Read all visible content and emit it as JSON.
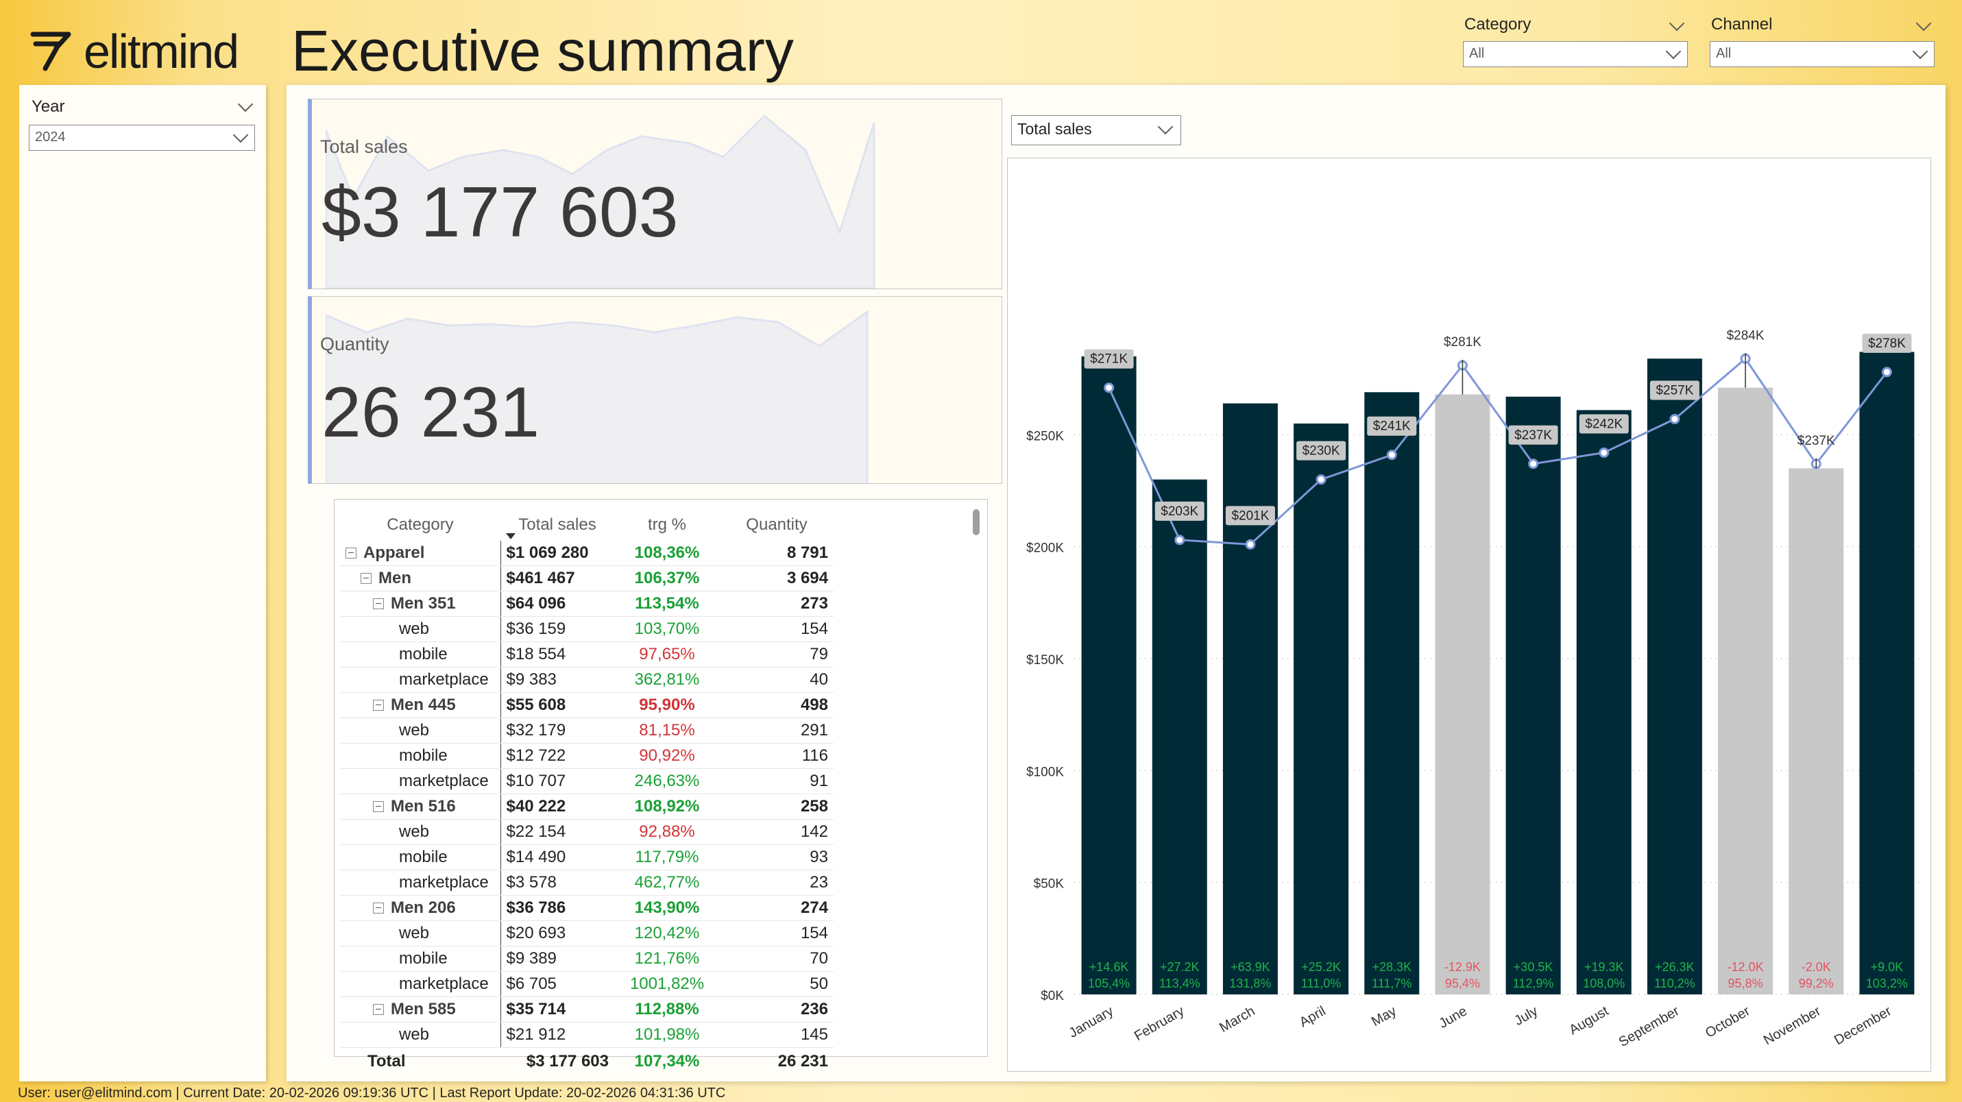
{
  "header": {
    "logo_text": "elitmind",
    "title": "Executive summary"
  },
  "slicers": {
    "year": {
      "label": "Year",
      "value": "2024"
    },
    "category": {
      "label": "Category",
      "value": "All"
    },
    "channel": {
      "label": "Channel",
      "value": "All"
    }
  },
  "kpis": {
    "total_sales": {
      "label": "Total sales",
      "value": "$3 177 603"
    },
    "quantity": {
      "label": "Quantity",
      "value": "26 231"
    }
  },
  "matrix": {
    "columns": [
      "Category",
      "Total sales",
      "trg %",
      "Quantity"
    ],
    "rows": [
      {
        "level": 0,
        "label": "Apparel",
        "sales": "$1 069 280",
        "trg": "108,36%",
        "trg_status": "pos",
        "qty": "8 791",
        "bold": true,
        "expand": true
      },
      {
        "level": 1,
        "label": "Men",
        "sales": "$461 467",
        "trg": "106,37%",
        "trg_status": "pos",
        "qty": "3 694",
        "bold": true,
        "expand": true
      },
      {
        "level": 2,
        "label": "Men 351",
        "sales": "$64 096",
        "trg": "113,54%",
        "trg_status": "pos",
        "qty": "273",
        "bold": true,
        "expand": true
      },
      {
        "level": 3,
        "label": "web",
        "sales": "$36 159",
        "trg": "103,70%",
        "trg_status": "pos",
        "qty": "154"
      },
      {
        "level": 3,
        "label": "mobile",
        "sales": "$18 554",
        "trg": "97,65%",
        "trg_status": "neg",
        "qty": "79"
      },
      {
        "level": 3,
        "label": "marketplace",
        "sales": "$9 383",
        "trg": "362,81%",
        "trg_status": "pos",
        "qty": "40"
      },
      {
        "level": 2,
        "label": "Men 445",
        "sales": "$55 608",
        "trg": "95,90%",
        "trg_status": "neg",
        "qty": "498",
        "bold": true,
        "expand": true
      },
      {
        "level": 3,
        "label": "web",
        "sales": "$32 179",
        "trg": "81,15%",
        "trg_status": "neg",
        "qty": "291"
      },
      {
        "level": 3,
        "label": "mobile",
        "sales": "$12 722",
        "trg": "90,92%",
        "trg_status": "neg",
        "qty": "116"
      },
      {
        "level": 3,
        "label": "marketplace",
        "sales": "$10 707",
        "trg": "246,63%",
        "trg_status": "pos",
        "qty": "91"
      },
      {
        "level": 2,
        "label": "Men 516",
        "sales": "$40 222",
        "trg": "108,92%",
        "trg_status": "pos",
        "qty": "258",
        "bold": true,
        "expand": true
      },
      {
        "level": 3,
        "label": "web",
        "sales": "$22 154",
        "trg": "92,88%",
        "trg_status": "neg",
        "qty": "142"
      },
      {
        "level": 3,
        "label": "mobile",
        "sales": "$14 490",
        "trg": "117,79%",
        "trg_status": "pos",
        "qty": "93"
      },
      {
        "level": 3,
        "label": "marketplace",
        "sales": "$3 578",
        "trg": "462,77%",
        "trg_status": "pos",
        "qty": "23"
      },
      {
        "level": 2,
        "label": "Men 206",
        "sales": "$36 786",
        "trg": "143,90%",
        "trg_status": "pos",
        "qty": "274",
        "bold": true,
        "expand": true
      },
      {
        "level": 3,
        "label": "web",
        "sales": "$20 693",
        "trg": "120,42%",
        "trg_status": "pos",
        "qty": "154"
      },
      {
        "level": 3,
        "label": "mobile",
        "sales": "$9 389",
        "trg": "121,76%",
        "trg_status": "pos",
        "qty": "70"
      },
      {
        "level": 3,
        "label": "marketplace",
        "sales": "$6 705",
        "trg": "1001,82%",
        "trg_status": "pos",
        "qty": "50"
      },
      {
        "level": 2,
        "label": "Men 585",
        "sales": "$35 714",
        "trg": "112,88%",
        "trg_status": "pos",
        "qty": "236",
        "bold": true,
        "expand": true
      },
      {
        "level": 3,
        "label": "web",
        "sales": "$21 912",
        "trg": "101,98%",
        "trg_status": "pos",
        "qty": "145"
      }
    ],
    "total": {
      "label": "Total",
      "sales": "$3 177 603",
      "trg": "107,34%",
      "qty": "26 231"
    }
  },
  "chart_selector": {
    "value": "Total sales"
  },
  "chart_data": {
    "type": "bar",
    "categories": [
      "January",
      "February",
      "March",
      "April",
      "May",
      "June",
      "July",
      "August",
      "September",
      "October",
      "November",
      "December"
    ],
    "series": [
      {
        "values": [
          285000,
          230000,
          264000,
          255000,
          269000,
          268000,
          267000,
          261000,
          284000,
          271000,
          235000,
          287000
        ]
      },
      {
        "values": [
          271000,
          203000,
          201000,
          230000,
          241000,
          281000,
          237000,
          242000,
          257000,
          284000,
          237000,
          278000
        ]
      }
    ],
    "bar_status": [
      "met",
      "met",
      "met",
      "met",
      "met",
      "missed",
      "met",
      "met",
      "met",
      "missed",
      "missed",
      "met"
    ],
    "line_labels": [
      "$271K",
      "$203K",
      "$201K",
      "$230K",
      "$241K",
      "$281K",
      "$237K",
      "$242K",
      "$257K",
      "$284K",
      "$237K",
      "$278K"
    ],
    "variance_labels": [
      "+14.6K",
      "+27.2K",
      "+63.9K",
      "+25.2K",
      "+28.3K",
      "-12.9K",
      "+30.5K",
      "+19.3K",
      "+26.3K",
      "-12.0K",
      "-2.0K",
      "+9.0K"
    ],
    "percent_labels": [
      "105,4%",
      "113,4%",
      "131,8%",
      "111,0%",
      "111,7%",
      "95,4%",
      "112,9%",
      "108,0%",
      "110,2%",
      "95,8%",
      "99,2%",
      "103,2%"
    ],
    "y_ticks": [
      "$0K",
      "$50K",
      "$100K",
      "$150K",
      "$200K",
      "$250K"
    ],
    "ylim": [
      0,
      300000
    ],
    "colors": {
      "bar_met": "#002b36",
      "bar_missed": "#c8c8c8",
      "line": "#7e97d8",
      "pos": "#22b14c",
      "neg": "#e05563"
    }
  },
  "footer": {
    "text": "User: user@elitmind.com | Current Date: 20-02-2026 09:19:36 UTC | Last Report Update: 20-02-2026 04:31:36 UTC"
  }
}
